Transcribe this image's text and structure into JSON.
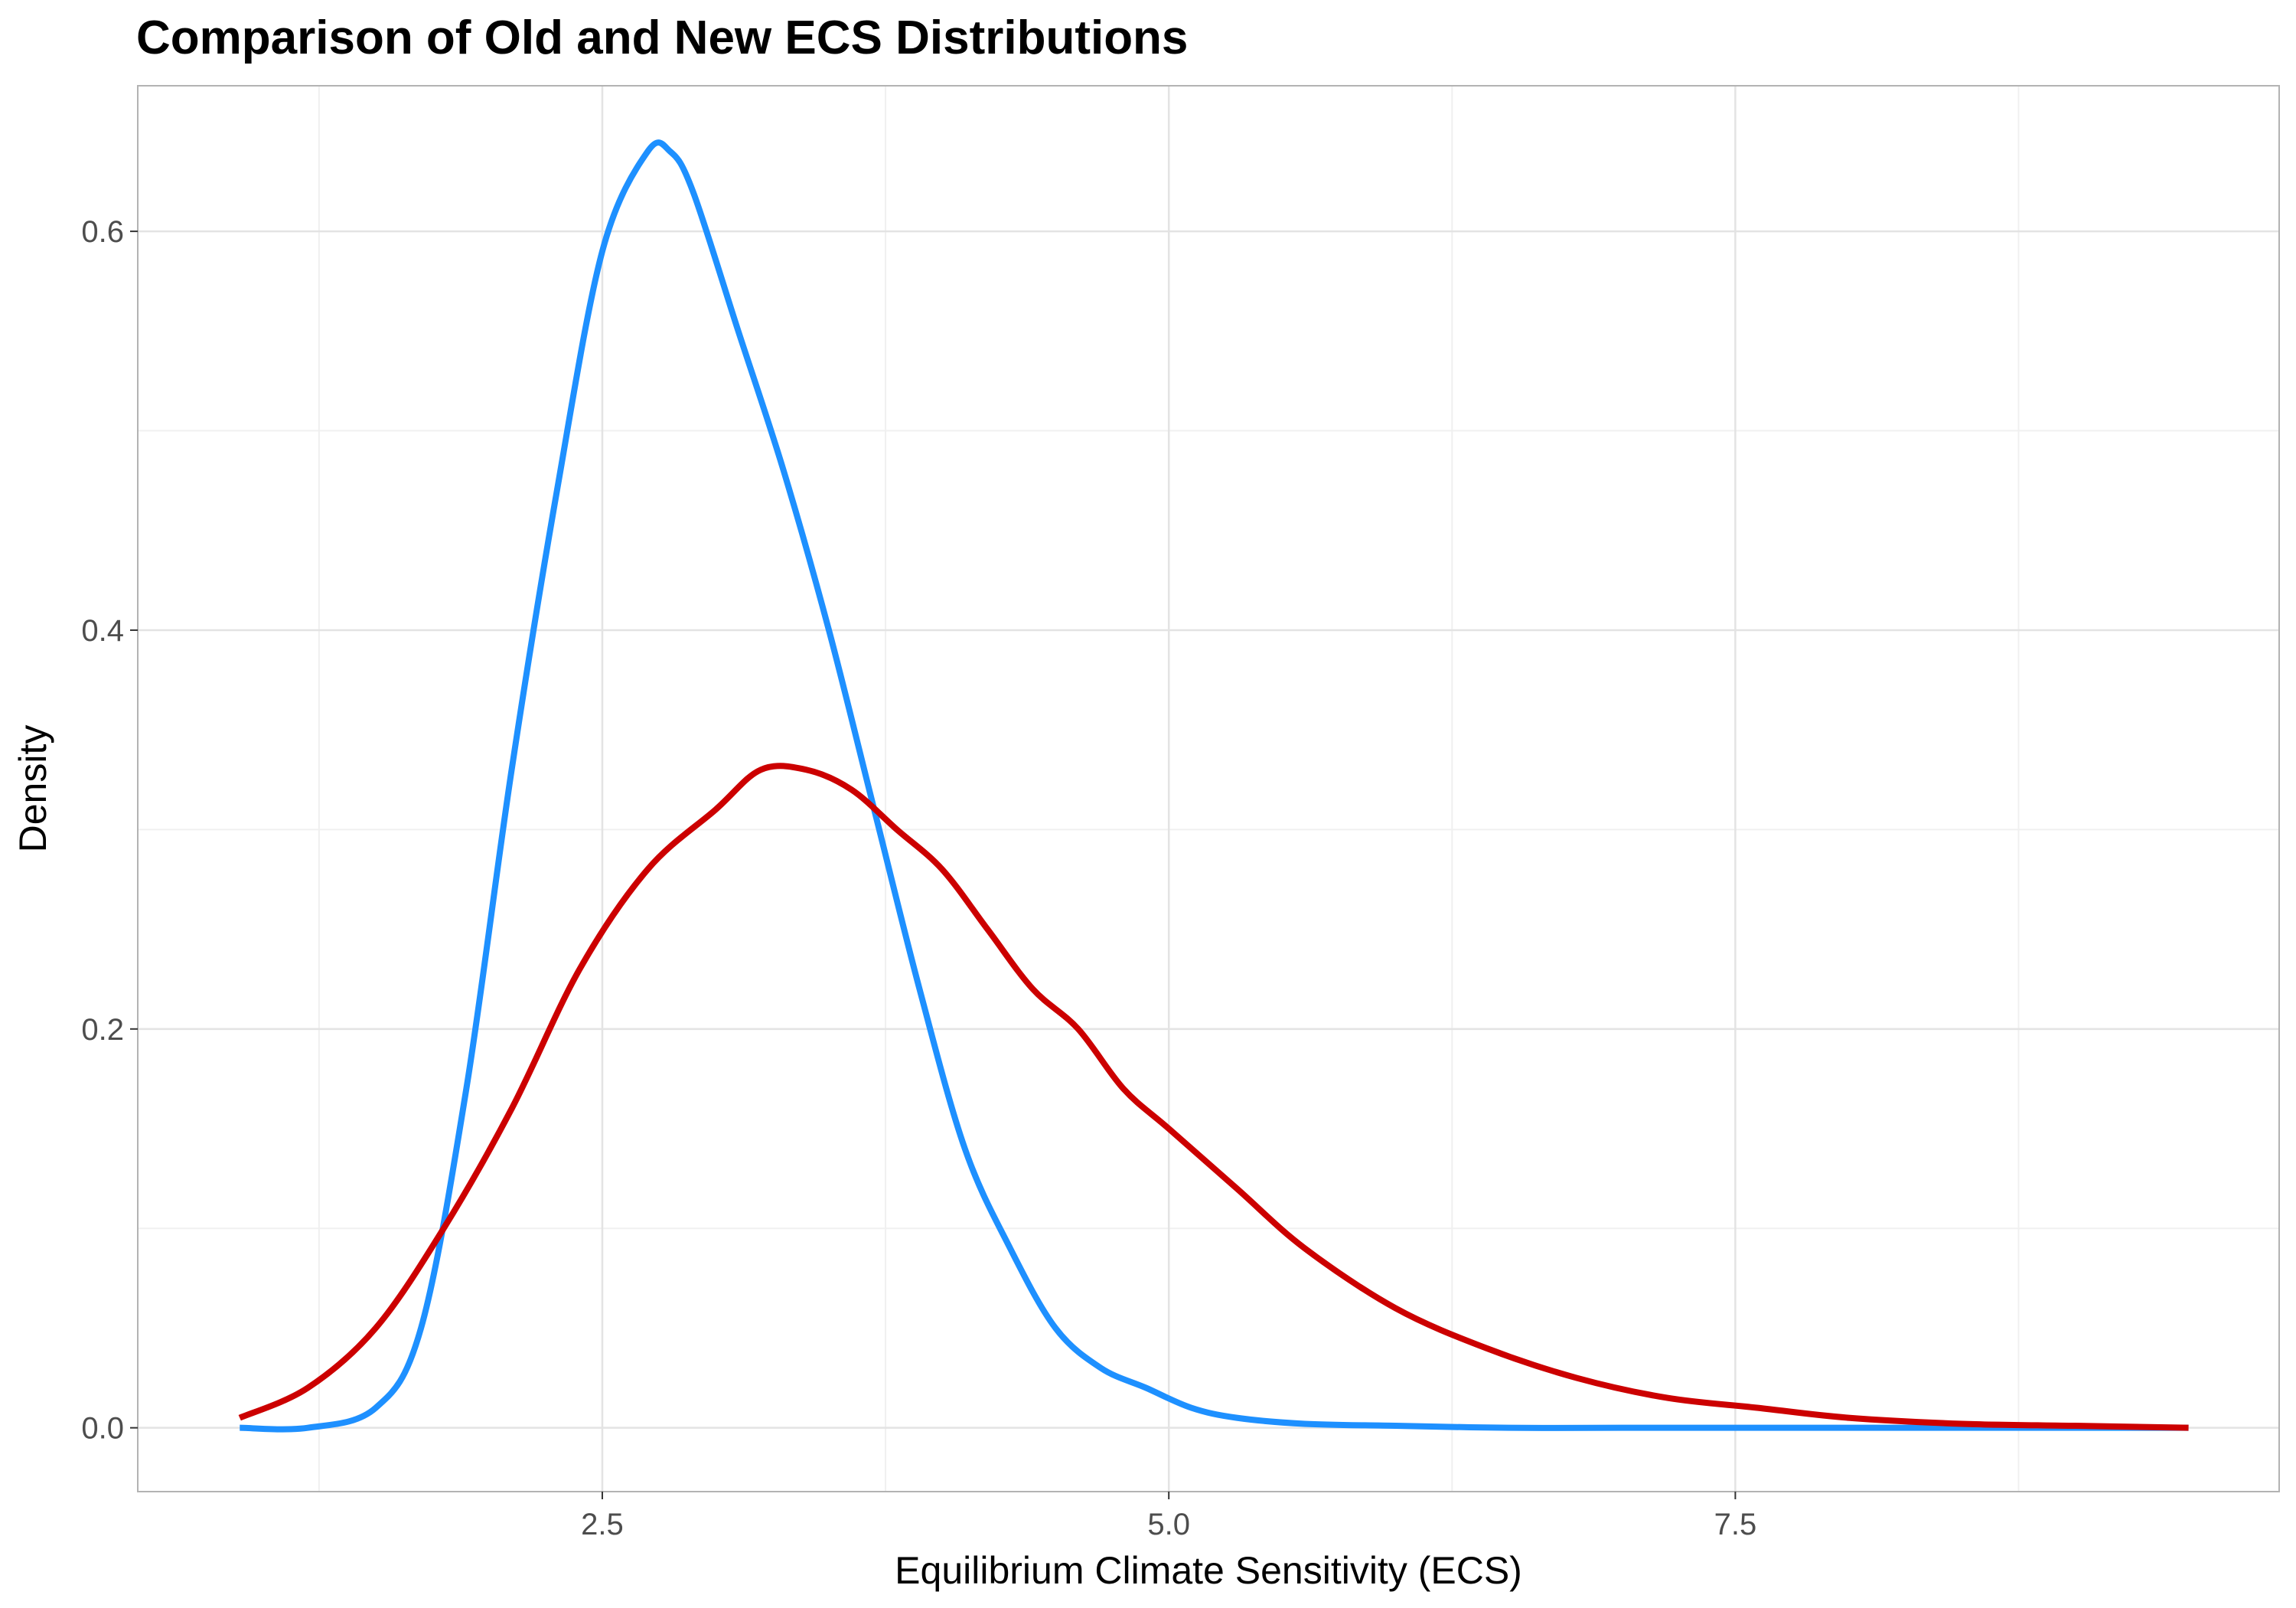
{
  "chart_data": {
    "type": "line",
    "title": "Comparison of Old and New ECS Distributions",
    "xlabel": "Equilibrium Climate Sensitivity (ECS)",
    "ylabel": "Density",
    "xlim": [
      0.45,
      9.9
    ],
    "ylim": [
      -0.032,
      0.673
    ],
    "x_ticks": [
      2.5,
      5.0,
      7.5
    ],
    "x_tick_labels": [
      "2.5",
      "5.0",
      "7.5"
    ],
    "y_ticks": [
      0.0,
      0.2,
      0.4,
      0.6
    ],
    "y_tick_labels": [
      "0.0",
      "0.2",
      "0.4",
      "0.6"
    ],
    "grid": true,
    "legend": "none",
    "series": [
      {
        "color": "#1E90FF",
        "x": [
          0.9,
          1.2,
          1.5,
          1.7,
          1.9,
          2.1,
          2.3,
          2.5,
          2.7,
          2.8,
          2.9,
          3.1,
          3.3,
          3.5,
          3.7,
          3.9,
          4.1,
          4.3,
          4.5,
          4.7,
          4.9,
          5.1,
          5.3,
          5.6,
          6.0,
          6.5,
          7.0,
          8.0,
          9.5
        ],
        "y": [
          0.0,
          0.0,
          0.01,
          0.05,
          0.17,
          0.33,
          0.47,
          0.59,
          0.64,
          0.64,
          0.62,
          0.55,
          0.48,
          0.4,
          0.31,
          0.22,
          0.14,
          0.09,
          0.05,
          0.03,
          0.02,
          0.01,
          0.005,
          0.002,
          0.001,
          0.0,
          0.0,
          0.0,
          0.0
        ]
      },
      {
        "color": "#CC0000",
        "x": [
          0.9,
          1.2,
          1.5,
          1.8,
          2.1,
          2.4,
          2.7,
          3.0,
          3.2,
          3.4,
          3.6,
          3.8,
          4.0,
          4.2,
          4.4,
          4.6,
          4.8,
          5.0,
          5.3,
          5.6,
          6.0,
          6.4,
          6.8,
          7.2,
          7.6,
          8.0,
          8.5,
          9.0,
          9.5
        ],
        "y": [
          0.005,
          0.02,
          0.05,
          0.1,
          0.16,
          0.23,
          0.28,
          0.31,
          0.33,
          0.33,
          0.32,
          0.3,
          0.28,
          0.25,
          0.22,
          0.2,
          0.17,
          0.15,
          0.12,
          0.09,
          0.06,
          0.04,
          0.025,
          0.015,
          0.01,
          0.005,
          0.002,
          0.001,
          0.0
        ]
      }
    ]
  }
}
